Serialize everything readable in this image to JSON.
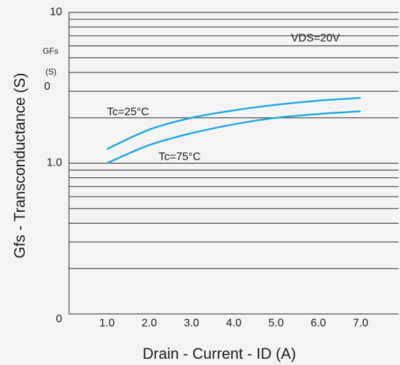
{
  "chart_data": {
    "type": "line",
    "ylabel": "Gfs - Transconductance (S)",
    "xlabel": "Drain - Current - ID (A)",
    "annotations": [
      "VDS=20V",
      "GFs",
      "(S)",
      "0"
    ],
    "x": [
      1,
      2,
      3,
      4,
      5,
      6,
      7
    ],
    "series": [
      {
        "name": "Tc=25°C",
        "color": "#1ea5e0",
        "values": [
          1.24,
          1.67,
          2.0,
          2.24,
          2.44,
          2.6,
          2.71
        ]
      },
      {
        "name": "Tc=75°C",
        "color": "#1ea5e0",
        "values": [
          1.0,
          1.32,
          1.58,
          1.81,
          2.0,
          2.12,
          2.21
        ]
      }
    ],
    "xlim": [
      0.1,
      7.9
    ],
    "xticks": [
      {
        "value": 1,
        "label": "1.0"
      },
      {
        "value": 2,
        "label": "2.0"
      },
      {
        "value": 3,
        "label": "3.0"
      },
      {
        "value": 4,
        "label": "4.0"
      },
      {
        "value": 5,
        "label": "5.0"
      },
      {
        "value": 6,
        "label": "6.0"
      },
      {
        "value": 7,
        "label": "7.0"
      }
    ],
    "ylim": [
      0.1,
      10
    ],
    "yscale": "log",
    "yticks": [
      {
        "value": 0.1,
        "label": "0"
      },
      {
        "value": 1,
        "label": "1.0"
      },
      10
    ],
    "yminorticks": [
      0.2,
      0.3,
      0.4,
      0.5,
      0.6,
      0.7,
      0.8,
      0.9,
      2,
      3,
      4,
      5,
      6,
      7,
      8,
      9
    ],
    "grid": true
  }
}
